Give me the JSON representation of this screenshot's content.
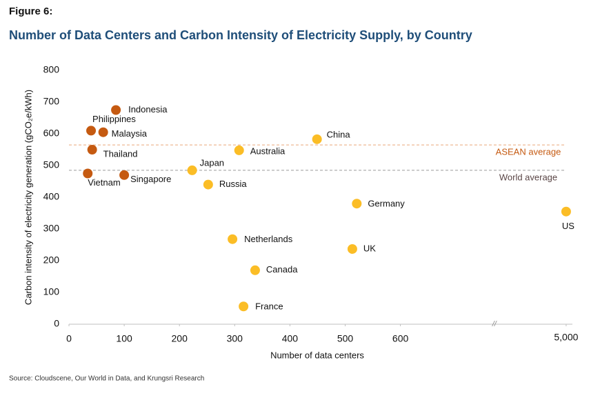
{
  "chart_data": {
    "type": "scatter",
    "figure_label": "Figure 6:",
    "title": "Number of Data Centers and Carbon Intensity of Electricity Supply, by Country",
    "xlabel": "Number of data centers",
    "ylabel": "Carbon intensity of electricity generation (gCO₂e/kWh)",
    "source": "Source: Cloudscene, Our World in Data, and Krungsri Research",
    "xlim": [
      0,
      5000
    ],
    "xbreak": {
      "from": 770,
      "to": 4870,
      "label": "//"
    },
    "xticks": [
      0,
      100,
      200,
      300,
      400,
      500,
      600,
      {
        "value": 5000,
        "label": "5,000"
      }
    ],
    "ylim": [
      0,
      800
    ],
    "yticks": [
      0,
      100,
      200,
      300,
      400,
      500,
      600,
      700,
      800
    ],
    "grid": false,
    "reference_lines": [
      {
        "label": "ASEAN average",
        "value": 565,
        "color": "#e9a77a",
        "label_color": "#c55a11"
      },
      {
        "label": "World average",
        "value": 485,
        "color": "#9a9a9a",
        "label_color": "#5a4646"
      }
    ],
    "series": [
      {
        "color": "#c55a11",
        "labels": [
          "Indonesia",
          "Philippines",
          "Malaysia",
          "Thailand",
          "Vietnam",
          "Singapore"
        ],
        "x": [
          85,
          40,
          62,
          42,
          34,
          100
        ],
        "values": [
          675,
          610,
          605,
          550,
          475,
          470
        ]
      },
      {
        "color": "#fbbd26",
        "labels": [
          "Japan",
          "Australia",
          "China",
          "Russia",
          "Germany",
          "US",
          "Netherlands",
          "UK",
          "Canada",
          "France"
        ],
        "x": [
          223,
          308,
          449,
          252,
          521,
          5000,
          296,
          513,
          337,
          316
        ],
        "values": [
          485,
          548,
          583,
          440,
          380,
          355,
          268,
          237,
          170,
          56
        ]
      }
    ]
  }
}
